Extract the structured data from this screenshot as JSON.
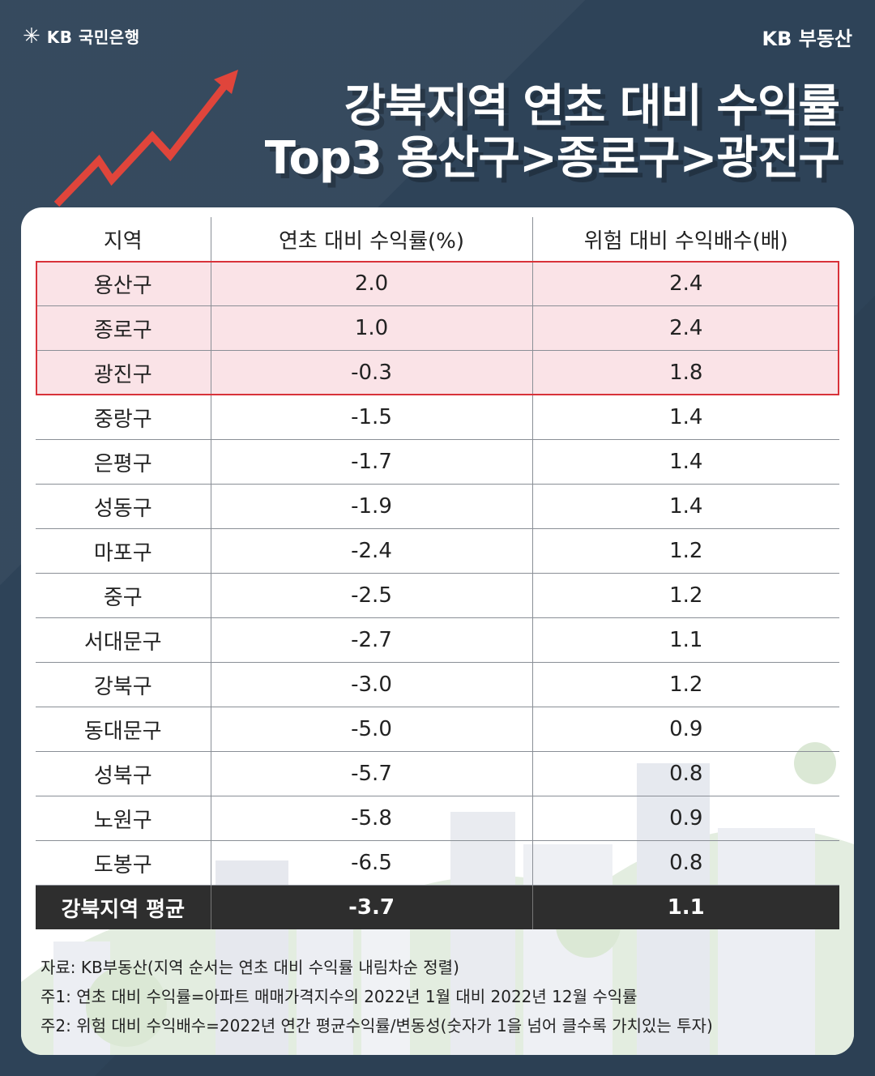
{
  "header": {
    "bank_name": "KB 국민은행",
    "brand": "KB 부동산"
  },
  "title": {
    "line1": "강북지역 연초 대비 수익률",
    "line2": "Top3 용산구>종로구>광진구"
  },
  "colors": {
    "background": "#2e4358",
    "arrow": "#e0453b",
    "highlight_border": "#d8323a",
    "highlight_fill": "#fae2e6",
    "average_row": "#2e2e2e"
  },
  "table": {
    "columns": [
      "지역",
      "연초 대비 수익률(%)",
      "위험 대비 수익배수(배)"
    ],
    "rows": [
      [
        "용산구",
        "2.0",
        "2.4"
      ],
      [
        "종로구",
        "1.0",
        "2.4"
      ],
      [
        "광진구",
        "-0.3",
        "1.8"
      ],
      [
        "중랑구",
        "-1.5",
        "1.4"
      ],
      [
        "은평구",
        "-1.7",
        "1.4"
      ],
      [
        "성동구",
        "-1.9",
        "1.4"
      ],
      [
        "마포구",
        "-2.4",
        "1.2"
      ],
      [
        "중구",
        "-2.5",
        "1.2"
      ],
      [
        "서대문구",
        "-2.7",
        "1.1"
      ],
      [
        "강북구",
        "-3.0",
        "1.2"
      ],
      [
        "동대문구",
        "-5.0",
        "0.9"
      ],
      [
        "성북구",
        "-5.7",
        "0.8"
      ],
      [
        "노원구",
        "-5.8",
        "0.9"
      ],
      [
        "도봉구",
        "-6.5",
        "0.8"
      ]
    ],
    "average": [
      "강북지역 평균",
      "-3.7",
      "1.1"
    ]
  },
  "notes": {
    "source": "자료: KB부동산(지역 순서는 연초 대비 수익률 내림차순 정렬)",
    "note1": "주1: 연초 대비 수익률=아파트 매매가격지수의 2022년 1월 대비 2022년 12월 수익률",
    "note2": "주2: 위험 대비 수익배수=2022년 연간 평균수익률/변동성(숫자가 1을 넘어 클수록 가치있는 투자)"
  }
}
